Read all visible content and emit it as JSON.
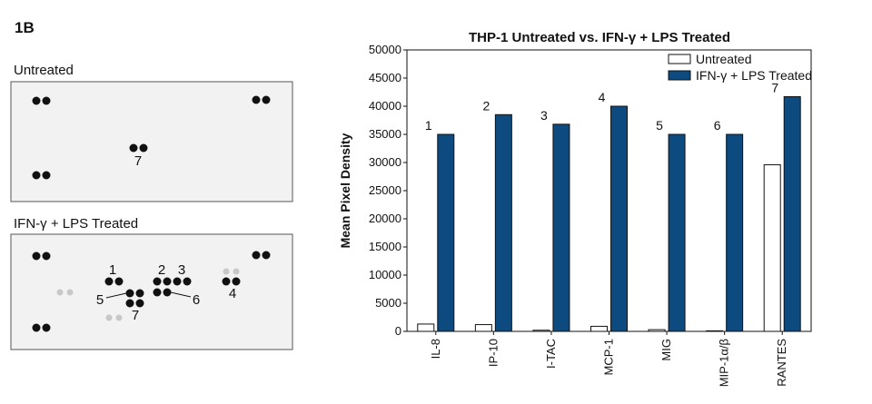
{
  "figure_label": "1B",
  "untreated_panel": {
    "title": "Untreated",
    "labels": [
      "7"
    ]
  },
  "treated_panel": {
    "title": "IFN-γ + LPS Treated",
    "labels": [
      "1",
      "2",
      "3",
      "4",
      "5",
      "6",
      "7"
    ]
  },
  "chart_data": {
    "type": "bar",
    "title": "THP-1 Untreated vs. IFN-γ + LPS Treated",
    "y_label": "Mean Pixel Density",
    "categories": [
      "IL-8",
      "IP-10",
      "I-TAC",
      "MCP-1",
      "MIG",
      "MIP-1α/β",
      "RANTES"
    ],
    "series": [
      {
        "name": "Untreated",
        "color": "#ffffff",
        "values": [
          1300,
          1200,
          200,
          900,
          300,
          100,
          29600
        ]
      },
      {
        "name": "IFN-γ + LPS Treated",
        "color": "#0d4a80",
        "values": [
          35000,
          38500,
          36800,
          40000,
          35000,
          35000,
          41700
        ]
      }
    ],
    "annotations": [
      "1",
      "2",
      "3",
      "4",
      "5",
      "6",
      "7"
    ],
    "ylim": [
      0,
      50000
    ],
    "yticks": [
      0,
      5000,
      10000,
      15000,
      20000,
      25000,
      30000,
      35000,
      40000,
      45000,
      50000
    ],
    "legend": "upper right"
  }
}
